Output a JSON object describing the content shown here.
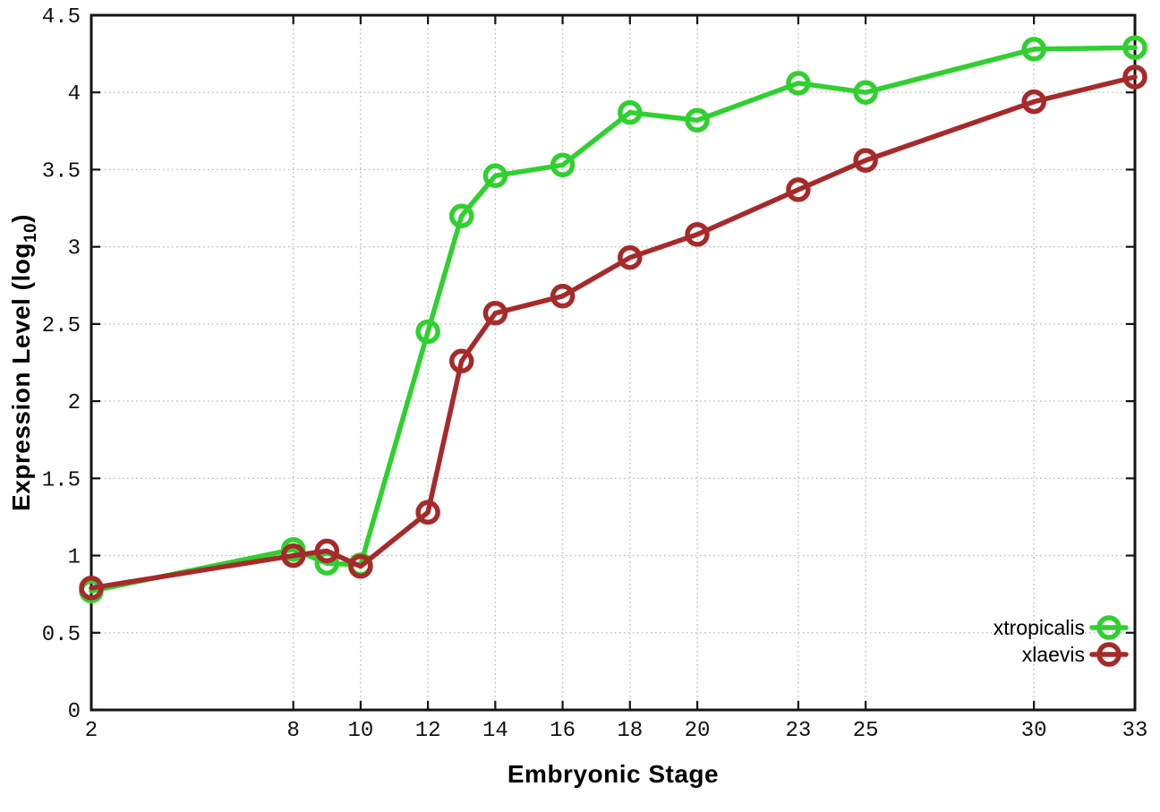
{
  "chart_data": {
    "type": "line",
    "title": "",
    "xlabel": "Embryonic Stage",
    "ylabel": "Expression Level (log10)",
    "ylabel_parts": {
      "main": "Expression Level (log",
      "sub": "10",
      "close": ")"
    },
    "xlim": [
      2,
      33
    ],
    "ylim": [
      0,
      4.5
    ],
    "grid": true,
    "grid_color": "#bbbbbb",
    "axis_color": "#141414",
    "x_ticks": [
      2,
      8,
      10,
      12,
      14,
      16,
      18,
      20,
      23,
      25,
      30,
      33
    ],
    "x_tick_labels": [
      "2",
      "8",
      "10",
      "12",
      "14",
      "16",
      "18",
      "20",
      "23",
      "25",
      "30",
      "33"
    ],
    "y_ticks": [
      0,
      0.5,
      1,
      1.5,
      2,
      2.5,
      3,
      3.5,
      4,
      4.5
    ],
    "y_tick_labels": [
      "0",
      "0.5",
      "1",
      "1.5",
      "2",
      "2.5",
      "3",
      "3.5",
      "4",
      "4.5"
    ],
    "x": [
      2,
      8,
      9,
      10,
      12,
      13,
      14,
      16,
      18,
      20,
      23,
      25,
      30,
      33
    ],
    "series": [
      {
        "name": "xtropicalis",
        "color": "#2fd02f",
        "marker": "open-circle",
        "values": [
          0.77,
          1.04,
          0.95,
          0.94,
          2.45,
          3.2,
          3.46,
          3.53,
          3.87,
          3.82,
          4.06,
          4.0,
          4.28,
          4.29
        ]
      },
      {
        "name": "xlaevis",
        "color": "#a62a2a",
        "marker": "open-circle",
        "values": [
          0.79,
          1.0,
          1.03,
          0.93,
          1.28,
          2.26,
          2.57,
          2.68,
          2.93,
          3.08,
          3.37,
          3.56,
          3.94,
          4.1
        ]
      }
    ],
    "legend": {
      "position": "inside-bottom-right"
    }
  }
}
